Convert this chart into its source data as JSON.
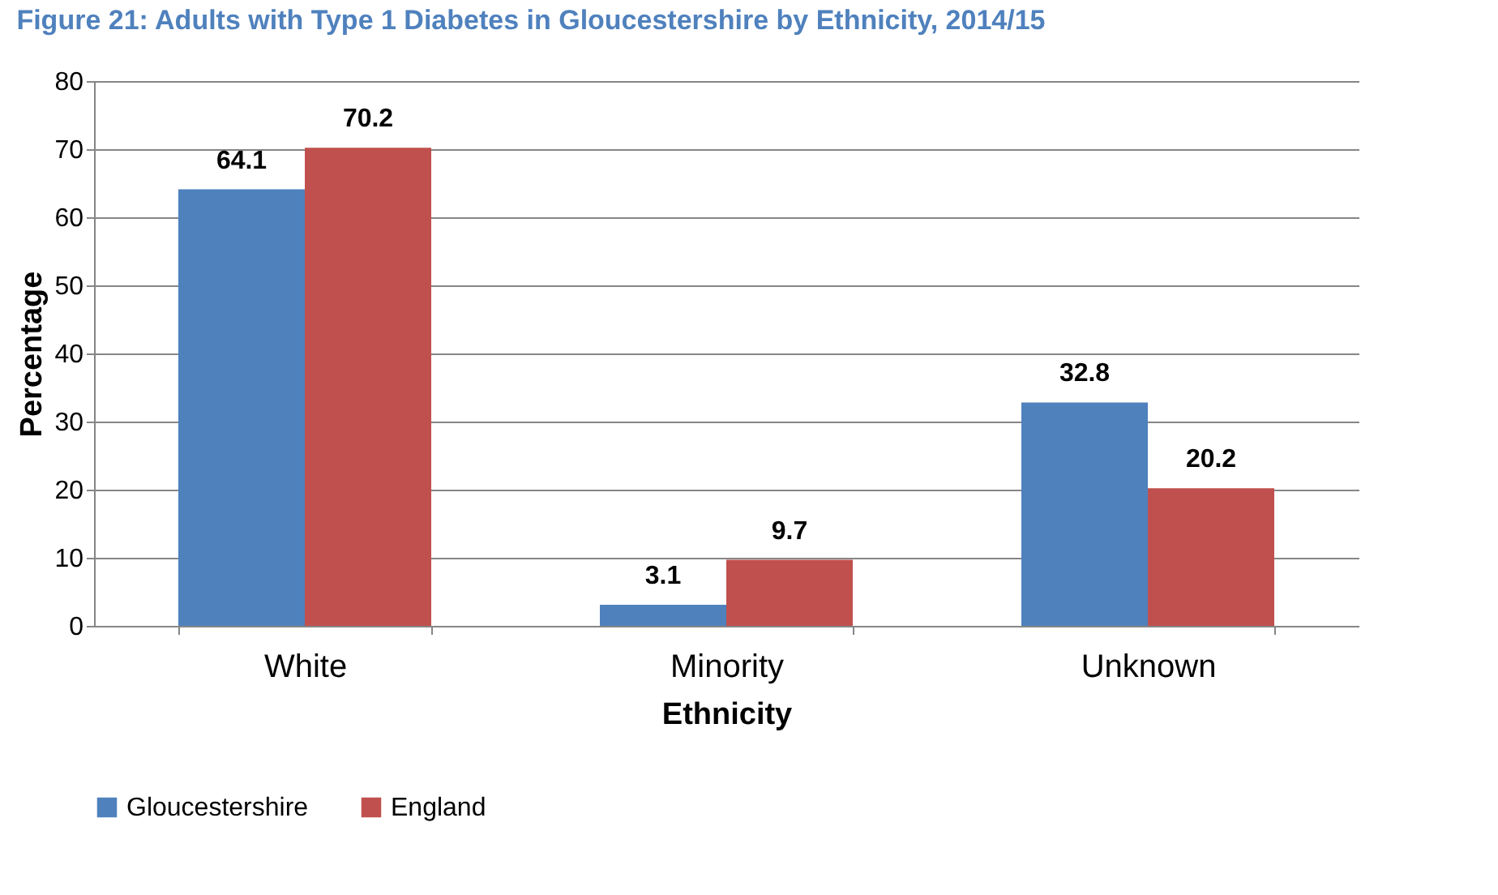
{
  "chart_data": {
    "type": "bar",
    "title": "Figure 21: Adults with Type 1 Diabetes in Gloucestershire by Ethnicity, 2014/15",
    "xlabel": "Ethnicity",
    "ylabel": "Percentage",
    "categories": [
      "White",
      "Minority",
      "Unknown"
    ],
    "series": [
      {
        "name": "Gloucestershire",
        "color": "#4f81bd",
        "values": [
          64.1,
          3.1,
          32.8
        ]
      },
      {
        "name": "England",
        "color": "#c0504d",
        "values": [
          70.2,
          9.7,
          20.2
        ]
      }
    ],
    "ylim": [
      0,
      80
    ],
    "yticks": [
      0,
      10,
      20,
      30,
      40,
      50,
      60,
      70,
      80
    ],
    "grid": "y",
    "legend": "bottom",
    "data_labels": true
  }
}
